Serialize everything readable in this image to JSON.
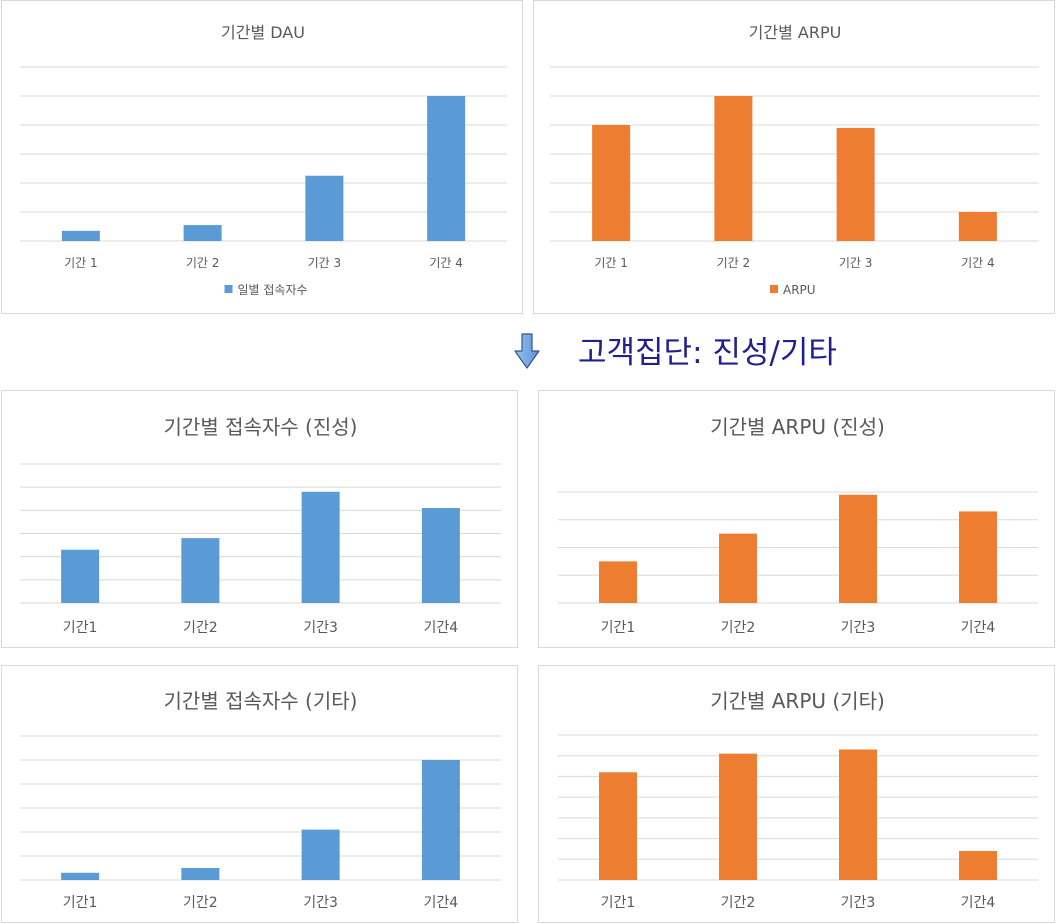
{
  "caption": "고객집단: 진성/기타",
  "colors": {
    "blue": "#5b9bd5",
    "orange": "#ed7d31"
  },
  "chart_data": [
    {
      "id": "dau-all",
      "type": "bar",
      "title": "기간별 DAU",
      "categories": [
        "기간 1",
        "기간 2",
        "기간 3",
        "기간 4"
      ],
      "series": [
        {
          "name": "일별 접속자수",
          "values": [
            0.35,
            0.55,
            2.25,
            5.0
          ]
        }
      ],
      "ylim": [
        0,
        6
      ],
      "grid": true,
      "legend": "bottom",
      "color": "#5b9bd5"
    },
    {
      "id": "arpu-all",
      "type": "bar",
      "title": "기간별 ARPU",
      "categories": [
        "기간 1",
        "기간 2",
        "기간 3",
        "기간 4"
      ],
      "series": [
        {
          "name": "ARPU",
          "values": [
            4.0,
            5.0,
            3.9,
            1.0
          ]
        }
      ],
      "ylim": [
        0,
        6
      ],
      "grid": true,
      "legend": "bottom",
      "color": "#ed7d31"
    },
    {
      "id": "dau-core",
      "type": "bar",
      "title": "기간별 접속자수 (진성)",
      "categories": [
        "기간1",
        "기간2",
        "기간3",
        "기간4"
      ],
      "series": [
        {
          "values": [
            2.3,
            2.8,
            4.8,
            4.1
          ]
        }
      ],
      "ylim": [
        0,
        6
      ],
      "grid": true,
      "color": "#5b9bd5"
    },
    {
      "id": "arpu-core",
      "type": "bar",
      "title": "기간별 ARPU (진성)",
      "categories": [
        "기간1",
        "기간2",
        "기간3",
        "기간4"
      ],
      "series": [
        {
          "values": [
            1.5,
            2.5,
            3.9,
            3.3
          ]
        }
      ],
      "ylim": [
        0,
        4
      ],
      "grid": true,
      "color": "#ed7d31"
    },
    {
      "id": "dau-other",
      "type": "bar",
      "title": "기간별 접속자수 (기타)",
      "categories": [
        "기간1",
        "기간2",
        "기간3",
        "기간4"
      ],
      "series": [
        {
          "values": [
            0.3,
            0.5,
            2.1,
            5.0
          ]
        }
      ],
      "ylim": [
        0,
        6
      ],
      "grid": true,
      "color": "#5b9bd5"
    },
    {
      "id": "arpu-other",
      "type": "bar",
      "title": "기간별 ARPU (기타)",
      "categories": [
        "기간1",
        "기간2",
        "기간3",
        "기간4"
      ],
      "series": [
        {
          "values": [
            5.2,
            6.1,
            6.3,
            1.4
          ]
        }
      ],
      "ylim": [
        0,
        7
      ],
      "grid": true,
      "color": "#ed7d31"
    }
  ]
}
